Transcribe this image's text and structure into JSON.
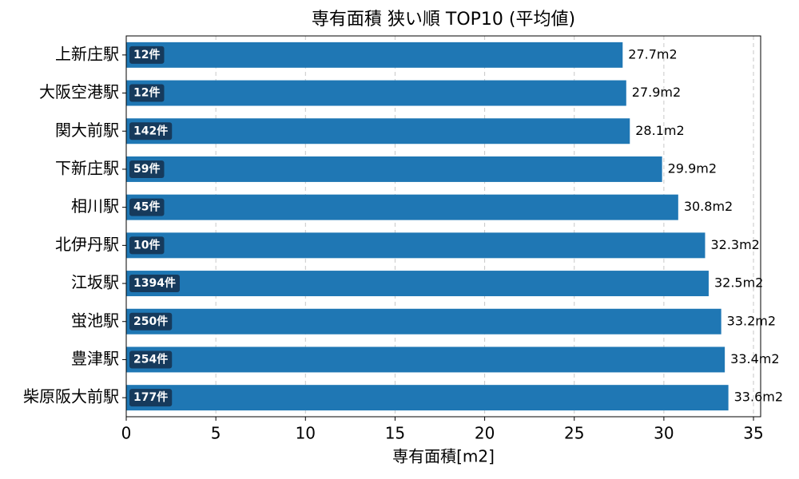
{
  "chart_data": {
    "type": "barh",
    "title": "専有面積 狭い順 TOP10 (平均値)",
    "x_label": "専有面積[m2]",
    "categories": [
      "上新庄駅",
      "大阪空港駅",
      "関大前駅",
      "下新庄駅",
      "相川駅",
      "北伊丹駅",
      "江坂駅",
      "蛍池駅",
      "豊津駅",
      "柴原阪大前駅"
    ],
    "values": [
      27.7,
      27.9,
      28.1,
      29.9,
      30.8,
      32.3,
      32.5,
      33.2,
      33.4,
      33.6
    ],
    "value_labels": [
      "27.7m2",
      "27.9m2",
      "28.1m2",
      "29.9m2",
      "30.8m2",
      "32.3m2",
      "32.5m2",
      "33.2m2",
      "33.4m2",
      "33.6m2"
    ],
    "count_labels": [
      "12件",
      "12件",
      "142件",
      "59件",
      "45件",
      "10件",
      "1394件",
      "250件",
      "254件",
      "177件"
    ],
    "color": "#1f77b4",
    "count_box_color": "#163a5c",
    "xlim": [
      0,
      35.4
    ],
    "xticks": [
      0,
      5,
      10,
      15,
      20,
      25,
      30,
      35
    ],
    "grid": true
  }
}
